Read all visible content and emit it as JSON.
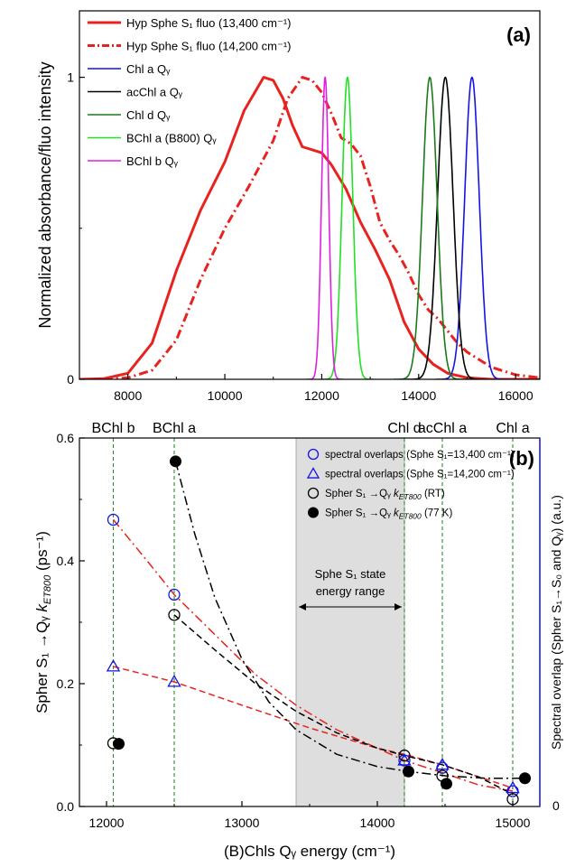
{
  "chart_data": [
    {
      "panel": "(a)",
      "type": "line",
      "ylabel": "Normalized absorbance/fluo intensity",
      "xlim": [
        7000,
        16500
      ],
      "ylim": [
        0,
        1.22
      ],
      "x_ticks": [
        "8000",
        "10000",
        "12000",
        "14000",
        "16000"
      ],
      "y_ticks": [
        "0",
        "1"
      ],
      "legend_position": "top-left",
      "series": [
        {
          "name": "Hyp Sphe S₁ fluo (13,400 cm⁻¹)",
          "color": "#e8231f",
          "style": "solid",
          "width": 3,
          "points": [
            [
              7000,
              0
            ],
            [
              7500,
              0.002
            ],
            [
              8000,
              0.02
            ],
            [
              8500,
              0.12
            ],
            [
              9000,
              0.36
            ],
            [
              9500,
              0.56
            ],
            [
              10000,
              0.72
            ],
            [
              10400,
              0.89
            ],
            [
              10800,
              1.0
            ],
            [
              11000,
              0.99
            ],
            [
              11200,
              0.93
            ],
            [
              11400,
              0.84
            ],
            [
              11600,
              0.77
            ],
            [
              11800,
              0.76
            ],
            [
              12000,
              0.75
            ],
            [
              12200,
              0.71
            ],
            [
              12500,
              0.63
            ],
            [
              12800,
              0.52
            ],
            [
              13100,
              0.43
            ],
            [
              13400,
              0.33
            ],
            [
              13700,
              0.19
            ],
            [
              14000,
              0.1
            ],
            [
              14300,
              0.05
            ],
            [
              14600,
              0.02
            ],
            [
              15000,
              0.005
            ],
            [
              15500,
              0
            ],
            [
              16500,
              0
            ]
          ]
        },
        {
          "name": "Hyp Sphe S₁ fluo (14,200 cm⁻¹)",
          "color": "#e8231f",
          "style": "dashdot",
          "width": 3,
          "points": [
            [
              7500,
              0
            ],
            [
              8000,
              0.005
            ],
            [
              8500,
              0.03
            ],
            [
              9000,
              0.13
            ],
            [
              9500,
              0.33
            ],
            [
              10000,
              0.5
            ],
            [
              10500,
              0.64
            ],
            [
              11000,
              0.79
            ],
            [
              11300,
              0.93
            ],
            [
              11600,
              1.0
            ],
            [
              11800,
              0.99
            ],
            [
              12000,
              0.95
            ],
            [
              12200,
              0.88
            ],
            [
              12400,
              0.8
            ],
            [
              12600,
              0.78
            ],
            [
              12800,
              0.74
            ],
            [
              13000,
              0.64
            ],
            [
              13200,
              0.52
            ],
            [
              13400,
              0.46
            ],
            [
              13600,
              0.41
            ],
            [
              13800,
              0.35
            ],
            [
              14000,
              0.28
            ],
            [
              14200,
              0.23
            ],
            [
              14400,
              0.2
            ],
            [
              14600,
              0.16
            ],
            [
              14800,
              0.12
            ],
            [
              15000,
              0.09
            ],
            [
              15500,
              0.04
            ],
            [
              16000,
              0.015
            ],
            [
              16500,
              0.005
            ]
          ]
        },
        {
          "name": "Chl a Qᵧ",
          "color": "#1414e6",
          "style": "solid",
          "width": 1.6,
          "gauss": {
            "center": 15100,
            "sigma": 150
          }
        },
        {
          "name": "acChl a Qᵧ",
          "color": "#000000",
          "style": "solid",
          "width": 1.6,
          "gauss": {
            "center": 14550,
            "sigma": 160
          }
        },
        {
          "name": "Chl d Qᵧ",
          "color": "#1b7a1b",
          "style": "solid",
          "width": 1.6,
          "gauss": {
            "center": 14230,
            "sigma": 150
          }
        },
        {
          "name": "BChl a (B800) Qᵧ",
          "color": "#22e022",
          "style": "solid",
          "width": 1.6,
          "gauss": {
            "center": 12530,
            "sigma": 110
          }
        },
        {
          "name": "BChl b Qᵧ",
          "color": "#e020e0",
          "style": "solid",
          "width": 1.6,
          "gauss": {
            "center": 12070,
            "sigma": 75
          }
        }
      ]
    },
    {
      "panel": "(b)",
      "type": "scatter",
      "xlabel": "(B)Chls Qᵧ energy (cm⁻¹)",
      "ylabel": "Spher S₁ →Qᵧ  k",
      "ylabel_sub": "ET800",
      "ylabel_unit": " (ps⁻¹)",
      "ylabel_right": "Spectral overlap (Spher S₁→S₀ and Qᵧ) (a.u.)",
      "xlim": [
        11800,
        15200
      ],
      "ylim": [
        0,
        0.6
      ],
      "x_ticks": [
        "12000",
        "13000",
        "14000",
        "15000"
      ],
      "y_ticks": [
        "0.0",
        "0.2",
        "0.4",
        "0.6"
      ],
      "right_ticks": [
        "0"
      ],
      "band": {
        "x_from": 13400,
        "x_to": 14200,
        "label_line1": "Sphe S₁ state",
        "label_line2": "energy range"
      },
      "vlines": [
        {
          "x": 12050,
          "label": "BChl b"
        },
        {
          "x": 12500,
          "label": "BChl a"
        },
        {
          "x": 14200,
          "label": "Chl d"
        },
        {
          "x": 14480,
          "label": "acChl a"
        },
        {
          "x": 15000,
          "label": "Chl a"
        }
      ],
      "legend_position": "top-right",
      "series": [
        {
          "name": "spectral overlaps (Sphe S₁=13,400 cm⁻¹)",
          "marker": "open-circle",
          "color": "#1414e6",
          "points": [
            [
              12050,
              0.467
            ],
            [
              12500,
              0.345
            ],
            [
              14200,
              0.075
            ],
            [
              14480,
              0.063
            ],
            [
              15000,
              0.025
            ]
          ]
        },
        {
          "name": "spectral overlaps (Sphe S₁=14,200 cm⁻¹)",
          "marker": "open-triangle",
          "color": "#1414e6",
          "points": [
            [
              12050,
              0.228
            ],
            [
              12500,
              0.203
            ],
            [
              14200,
              0.075
            ],
            [
              14480,
              0.068
            ],
            [
              15000,
              0.03
            ]
          ]
        },
        {
          "name": "Spher S₁ →Qᵧ k",
          "name_sub": "ET800",
          "name_tail": " (RT)",
          "marker": "open-circle",
          "color": "#000000",
          "points": [
            [
              12050,
              0.103
            ],
            [
              12500,
              0.312
            ],
            [
              14200,
              0.083
            ],
            [
              14480,
              0.05
            ],
            [
              15000,
              0.012
            ]
          ]
        },
        {
          "name": "Spher S₁ →Qᵧ k",
          "name_sub": "ET800",
          "name_tail": " (77 K)",
          "marker": "filled-circle",
          "color": "#000000",
          "points": [
            [
              12090,
              0.102
            ],
            [
              12510,
              0.562
            ],
            [
              14230,
              0.057
            ],
            [
              14510,
              0.037
            ],
            [
              15090,
              0.046
            ]
          ]
        }
      ],
      "fits": [
        {
          "color": "#e8231f",
          "style": "dashdot",
          "points": [
            [
              12050,
              0.467
            ],
            [
              12300,
              0.4
            ],
            [
              12500,
              0.345
            ],
            [
              12800,
              0.28
            ],
            [
              13100,
              0.215
            ],
            [
              13400,
              0.165
            ],
            [
              13700,
              0.125
            ],
            [
              14000,
              0.095
            ],
            [
              14200,
              0.075
            ],
            [
              14480,
              0.055
            ],
            [
              14750,
              0.035
            ],
            [
              15000,
              0.025
            ]
          ]
        },
        {
          "color": "#e8231f",
          "style": "dashed",
          "points": [
            [
              12050,
              0.228
            ],
            [
              12500,
              0.203
            ],
            [
              13000,
              0.165
            ],
            [
              13500,
              0.128
            ],
            [
              14000,
              0.095
            ],
            [
              14200,
              0.085
            ],
            [
              14480,
              0.068
            ],
            [
              15000,
              0.03
            ]
          ]
        },
        {
          "color": "#000000",
          "style": "dashed",
          "points": [
            [
              12500,
              0.312
            ],
            [
              12800,
              0.255
            ],
            [
              13100,
              0.2
            ],
            [
              13400,
              0.155
            ],
            [
              13700,
              0.12
            ],
            [
              14000,
              0.095
            ],
            [
              14200,
              0.083
            ],
            [
              14480,
              0.068
            ],
            [
              14750,
              0.048
            ],
            [
              15000,
              0.02
            ]
          ]
        },
        {
          "color": "#000000",
          "style": "dashdot",
          "points": [
            [
              12510,
              0.562
            ],
            [
              12650,
              0.445
            ],
            [
              12800,
              0.34
            ],
            [
              13000,
              0.24
            ],
            [
              13200,
              0.17
            ],
            [
              13400,
              0.125
            ],
            [
              13700,
              0.085
            ],
            [
              14000,
              0.065
            ],
            [
              14230,
              0.057
            ],
            [
              14500,
              0.05
            ],
            [
              14800,
              0.046
            ],
            [
              15090,
              0.046
            ]
          ]
        }
      ]
    }
  ]
}
